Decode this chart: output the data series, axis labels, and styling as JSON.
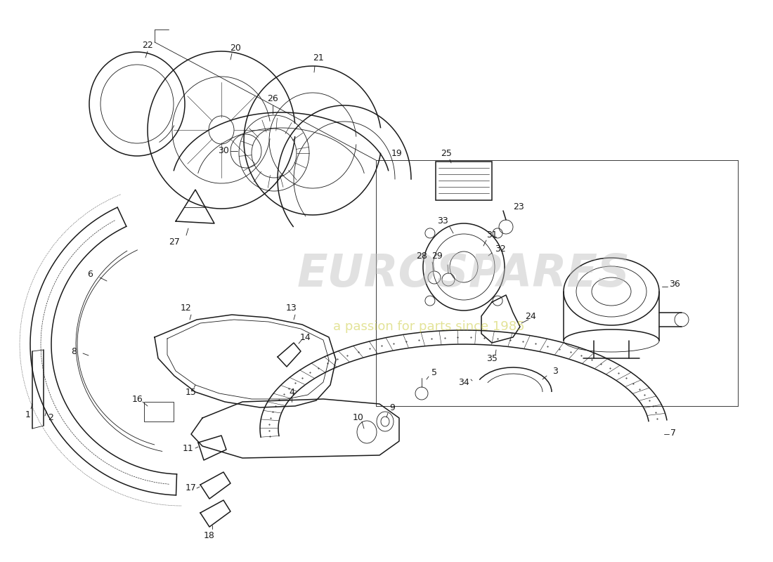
{
  "bg_color": "#ffffff",
  "lc": "#1a1a1a",
  "wm_color1": "#c8c8c8",
  "wm_color2": "#c8c832",
  "lw": 1.1,
  "lw2": 0.6,
  "fig_w": 11.0,
  "fig_h": 8.0,
  "dpi": 100
}
